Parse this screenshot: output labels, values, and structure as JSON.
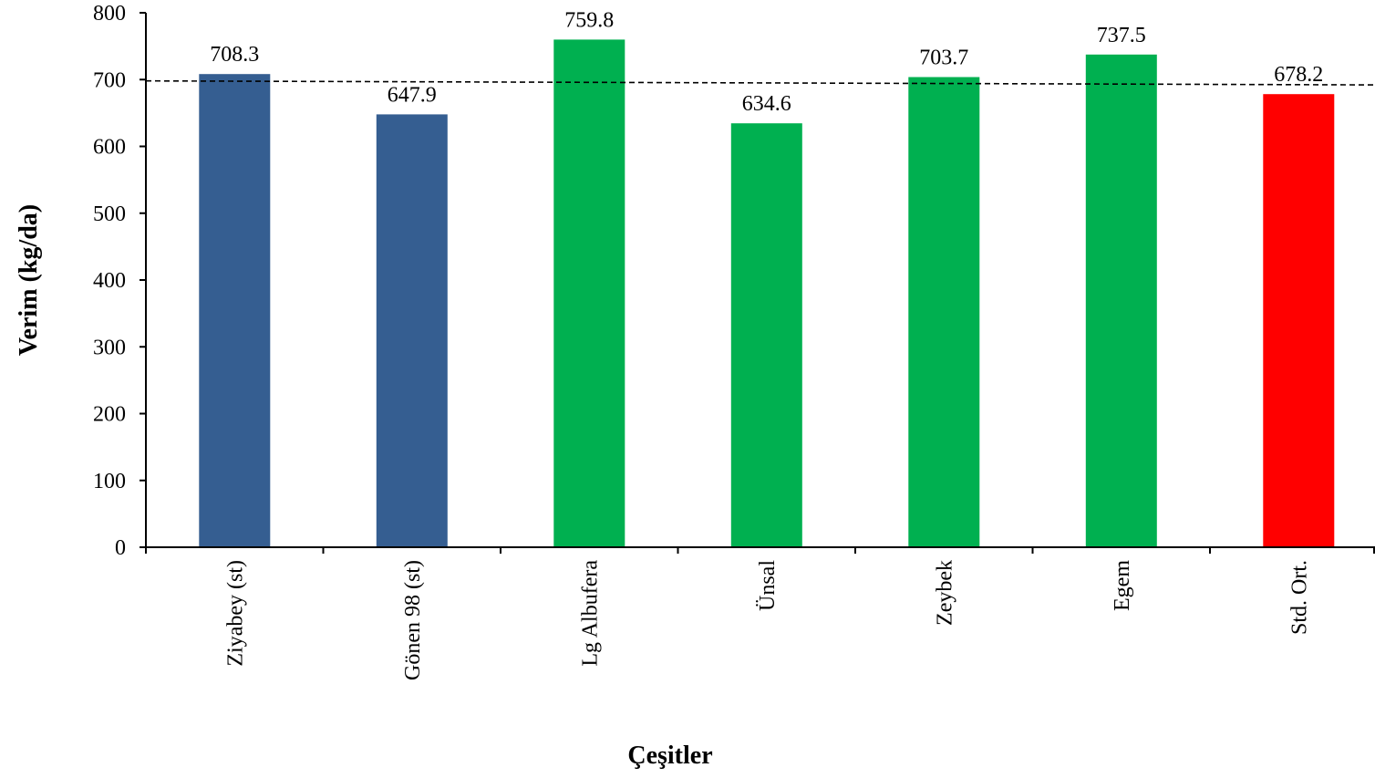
{
  "chart_data": {
    "type": "bar",
    "title": "",
    "xlabel": "Çeşitler",
    "ylabel": "Verim (kg/da)",
    "ylim": [
      0,
      800
    ],
    "yticks": [
      0,
      100,
      200,
      300,
      400,
      500,
      600,
      700,
      800
    ],
    "grid": false,
    "legend": "none",
    "categories": [
      "Ziyabey (st)",
      "Gönen 98 (st)",
      "Lg Albufera",
      "Ünsal",
      "Zeybek",
      "Egem",
      "Std. Ort."
    ],
    "values": [
      708.3,
      647.9,
      759.8,
      634.6,
      703.7,
      737.5,
      678.2
    ],
    "value_labels": [
      "708.3",
      "647.9",
      "759.8",
      "634.6",
      "703.7",
      "737.5",
      "678.2"
    ],
    "bar_colors": [
      "#355E91",
      "#355E91",
      "#00B050",
      "#00B050",
      "#00B050",
      "#00B050",
      "#FF0000"
    ],
    "reference_line": {
      "style": "dashed",
      "color": "#000000",
      "y_start": 698,
      "y_end": 692
    }
  }
}
